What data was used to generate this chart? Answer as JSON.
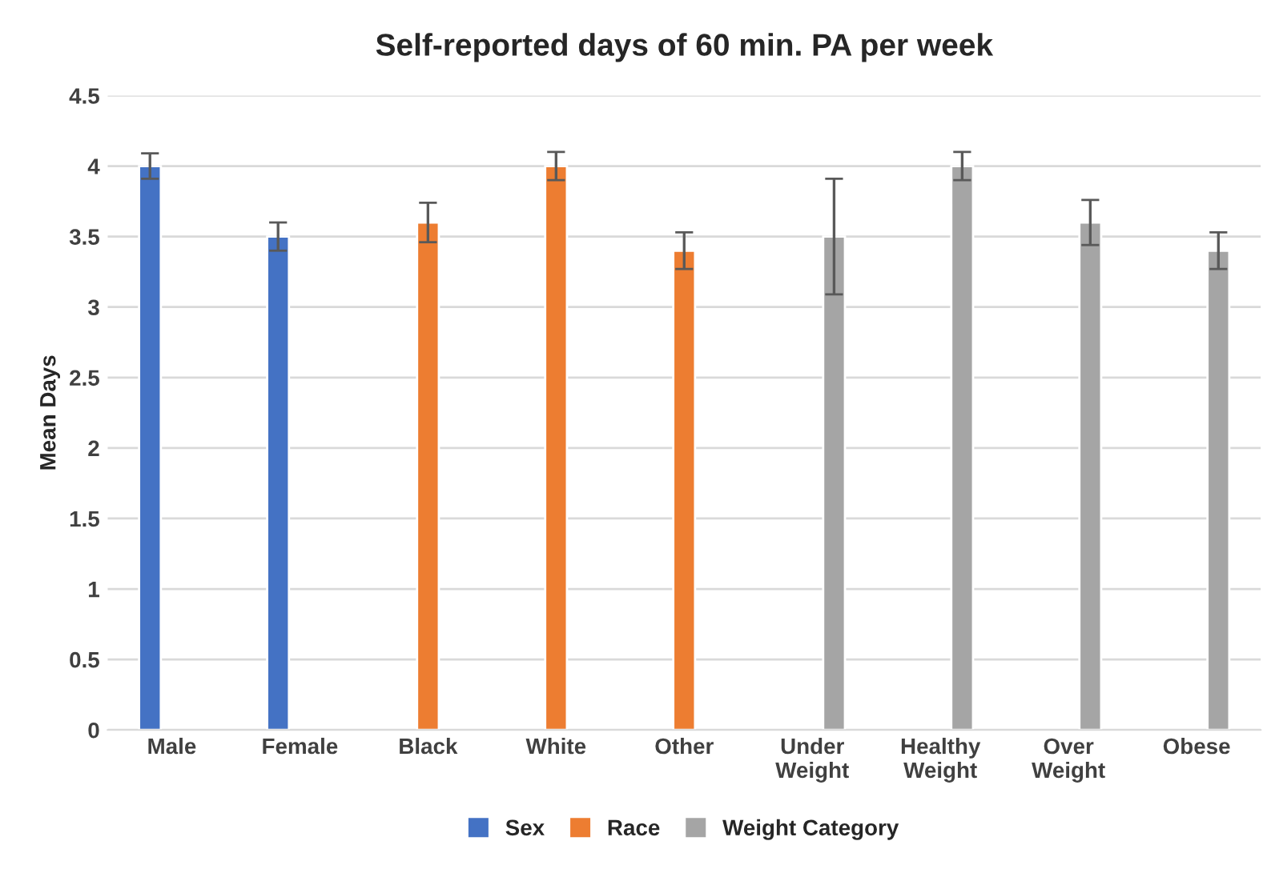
{
  "chart_data": {
    "type": "bar",
    "title": "Self-reported days of 60 min. PA per week",
    "ylabel": "Mean Days",
    "categories": [
      "Male",
      "Female",
      "Black",
      "White",
      "Other",
      "Under Weight",
      "Healthy Weight",
      "Over Weight",
      "Obese"
    ],
    "series": [
      {
        "name": "Sex",
        "color": "#4472c4",
        "values": [
          4.0,
          3.5,
          null,
          null,
          null,
          null,
          null,
          null,
          null
        ],
        "errors": [
          0.09,
          0.1,
          null,
          null,
          null,
          null,
          null,
          null,
          null
        ]
      },
      {
        "name": "Race",
        "color": "#ed7d31",
        "values": [
          null,
          null,
          3.6,
          4.0,
          3.4,
          null,
          null,
          null,
          null
        ],
        "errors": [
          null,
          null,
          0.14,
          0.1,
          0.13,
          null,
          null,
          null,
          null
        ]
      },
      {
        "name": "Weight Category",
        "color": "#a5a5a5",
        "values": [
          null,
          null,
          null,
          null,
          null,
          3.5,
          4.0,
          3.6,
          3.4
        ],
        "errors": [
          null,
          null,
          null,
          null,
          null,
          0.41,
          0.1,
          0.16,
          0.13
        ]
      }
    ],
    "ylim": [
      0,
      4.5
    ],
    "yticks": [
      0,
      0.5,
      1,
      1.5,
      2,
      2.5,
      3,
      3.5,
      4,
      4.5
    ],
    "grid": "y",
    "legend": "bottom"
  }
}
